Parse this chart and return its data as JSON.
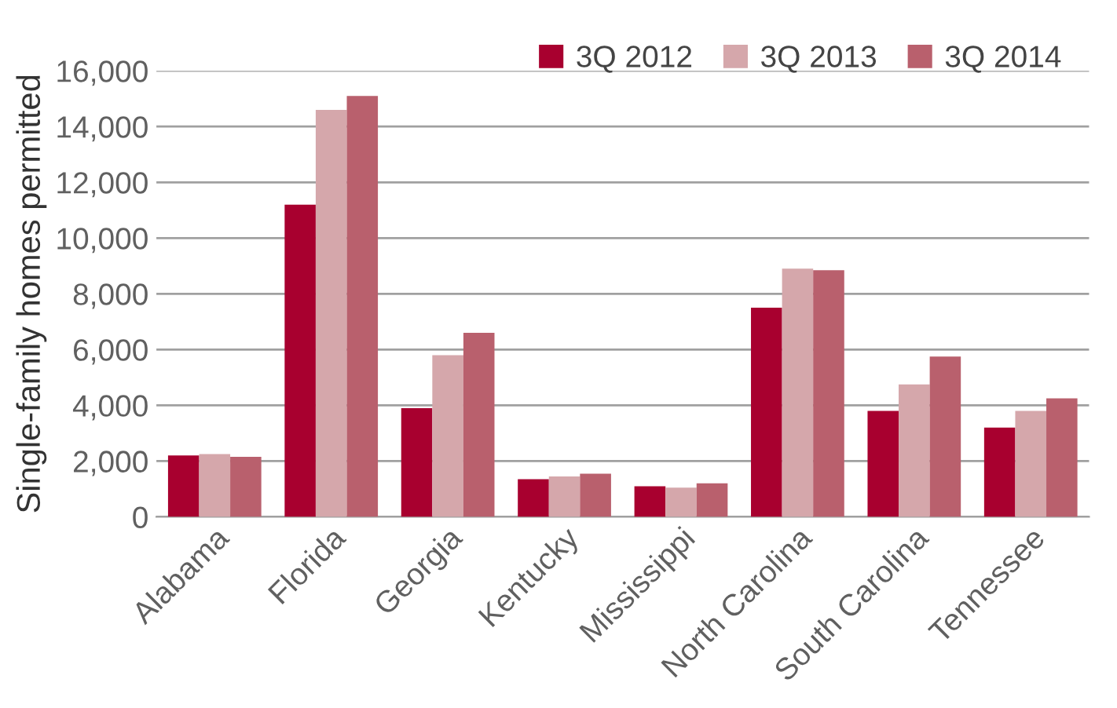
{
  "chart_data": {
    "type": "bar",
    "ylabel": "Single-family homes permitted",
    "categories": [
      "Alabama",
      "Florida",
      "Georgia",
      "Kentucky",
      "Mississippi",
      "North Carolina",
      "South Carolina",
      "Tennessee"
    ],
    "series": [
      {
        "name": "3Q 2012",
        "color": "#a8002f",
        "values": [
          2200,
          11200,
          3900,
          1350,
          1100,
          7500,
          3800,
          3200
        ]
      },
      {
        "name": "3Q 2013",
        "color": "#d5a7ab",
        "values": [
          2250,
          14600,
          5800,
          1450,
          1050,
          8900,
          4750,
          3800
        ]
      },
      {
        "name": "3Q 2014",
        "color": "#b9606d",
        "values": [
          2150,
          15100,
          6600,
          1550,
          1200,
          8850,
          5750,
          4250
        ]
      }
    ],
    "ylim": [
      0,
      16000
    ],
    "yticks": [
      {
        "value": 0,
        "label": "0"
      },
      {
        "value": 2000,
        "label": "2,000"
      },
      {
        "value": 4000,
        "label": "4,000"
      },
      {
        "value": 6000,
        "label": "6,000"
      },
      {
        "value": 8000,
        "label": "8,000"
      },
      {
        "value": 10000,
        "label": "10,000"
      },
      {
        "value": 12000,
        "label": "12,000"
      },
      {
        "value": 14000,
        "label": "14,000"
      },
      {
        "value": 16000,
        "label": "16,000"
      }
    ],
    "grid": "y",
    "legend": "top right"
  }
}
